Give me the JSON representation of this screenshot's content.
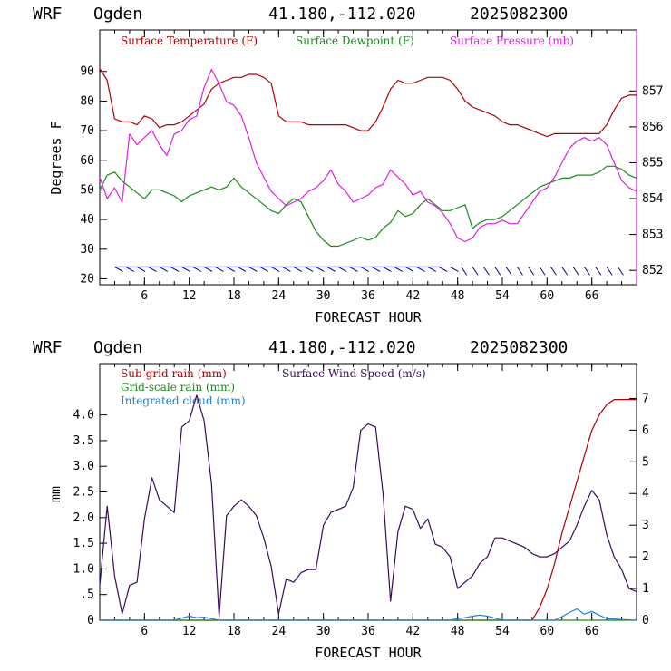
{
  "chart_data": [
    {
      "type": "line",
      "header": {
        "model": "WRF",
        "station": "Ogden",
        "coords": "41.180,-112.020",
        "date": "2025082300"
      },
      "xlabel": "FORECAST HOUR",
      "ylabel": "Degrees F",
      "xlim": [
        0,
        72
      ],
      "ylim": [
        18,
        104
      ],
      "y2lim": [
        851.6,
        858.7
      ],
      "xticks": [
        "6",
        "12",
        "18",
        "24",
        "30",
        "36",
        "42",
        "48",
        "54",
        "60",
        "66"
      ],
      "yticks": [
        "20",
        "30",
        "40",
        "50",
        "60",
        "70",
        "80",
        "90"
      ],
      "y2ticks": [
        "852",
        "853",
        "854",
        "855",
        "856",
        "857"
      ],
      "series": [
        {
          "name": "Surface Temperature (F)",
          "color": "#b00000",
          "axis": "left",
          "x": [
            0,
            1,
            2,
            3,
            4,
            5,
            6,
            7,
            8,
            9,
            10,
            11,
            12,
            13,
            14,
            15,
            16,
            17,
            18,
            19,
            20,
            21,
            22,
            23,
            24,
            25,
            26,
            27,
            28,
            29,
            30,
            31,
            32,
            33,
            34,
            35,
            36,
            37,
            38,
            39,
            40,
            41,
            42,
            43,
            44,
            45,
            46,
            47,
            48,
            49,
            50,
            51,
            52,
            53,
            54,
            55,
            56,
            57,
            58,
            59,
            60,
            61,
            62,
            63,
            64,
            65,
            66,
            67,
            68,
            69,
            70,
            71,
            72
          ],
          "y": [
            91,
            87,
            74,
            73,
            73,
            72,
            75,
            74,
            71,
            72,
            72,
            73,
            75,
            77,
            79,
            84,
            86,
            87,
            88,
            88,
            89,
            89,
            88,
            86,
            75,
            73,
            73,
            73,
            72,
            72,
            72,
            72,
            72,
            72,
            71,
            70,
            70,
            73,
            78,
            84,
            87,
            86,
            86,
            87,
            88,
            88,
            88,
            87,
            84,
            80,
            78,
            77,
            76,
            75,
            73,
            72,
            72,
            71,
            70,
            69,
            68,
            69,
            69,
            69,
            69,
            69,
            69,
            69,
            72,
            77,
            81,
            82,
            82
          ]
        },
        {
          "name": "Surface Dewpoint (F)",
          "color": "#1a8a1a",
          "axis": "left",
          "x": [
            0,
            1,
            2,
            3,
            4,
            5,
            6,
            7,
            8,
            9,
            10,
            11,
            12,
            13,
            14,
            15,
            16,
            17,
            18,
            19,
            20,
            21,
            22,
            23,
            24,
            25,
            26,
            27,
            28,
            29,
            30,
            31,
            32,
            33,
            34,
            35,
            36,
            37,
            38,
            39,
            40,
            41,
            42,
            43,
            44,
            45,
            46,
            47,
            48,
            49,
            50,
            51,
            52,
            53,
            54,
            55,
            56,
            57,
            58,
            59,
            60,
            61,
            62,
            63,
            64,
            65,
            66,
            67,
            68,
            69,
            70,
            71,
            72
          ],
          "y": [
            50,
            55,
            56,
            53,
            51,
            49,
            47,
            50,
            50,
            49,
            48,
            46,
            48,
            49,
            50,
            51,
            50,
            51,
            54,
            51,
            49,
            47,
            45,
            43,
            42,
            45,
            47,
            46,
            41,
            36,
            33,
            31,
            31,
            32,
            33,
            34,
            33,
            34,
            37,
            39,
            43,
            41,
            42,
            45,
            47,
            45,
            43,
            43,
            44,
            45,
            37,
            39,
            40,
            40,
            41,
            43,
            45,
            47,
            49,
            51,
            52,
            53,
            54,
            54,
            55,
            55,
            55,
            56,
            58,
            58,
            57,
            55,
            54
          ]
        },
        {
          "name": "Surface Pressure (mb)",
          "color": "#e020e0",
          "axis": "right",
          "x": [
            0,
            1,
            2,
            3,
            4,
            5,
            6,
            7,
            8,
            9,
            10,
            11,
            12,
            13,
            14,
            15,
            16,
            17,
            18,
            19,
            20,
            21,
            22,
            23,
            24,
            25,
            26,
            27,
            28,
            29,
            30,
            31,
            32,
            33,
            34,
            35,
            36,
            37,
            38,
            39,
            40,
            41,
            42,
            43,
            44,
            45,
            46,
            47,
            48,
            49,
            50,
            51,
            52,
            53,
            54,
            55,
            56,
            57,
            58,
            59,
            60,
            61,
            62,
            63,
            64,
            65,
            66,
            67,
            68,
            69,
            70,
            71,
            72
          ],
          "y": [
            854.6,
            854.0,
            854.3,
            853.9,
            855.8,
            855.5,
            855.7,
            855.9,
            855.5,
            855.2,
            855.8,
            855.9,
            856.2,
            856.3,
            857.1,
            857.6,
            857.2,
            856.7,
            856.6,
            856.3,
            855.7,
            855.0,
            854.6,
            854.2,
            854.0,
            853.8,
            853.9,
            854.0,
            854.2,
            854.3,
            854.5,
            854.8,
            854.4,
            854.2,
            853.9,
            854.0,
            854.1,
            854.3,
            854.4,
            854.8,
            854.6,
            854.4,
            854.1,
            854.2,
            853.9,
            853.8,
            853.6,
            853.3,
            852.9,
            852.8,
            852.9,
            853.2,
            853.3,
            853.3,
            853.4,
            853.3,
            853.3,
            853.6,
            853.9,
            854.2,
            854.3,
            854.6,
            855.0,
            855.4,
            855.6,
            855.7,
            855.6,
            855.7,
            855.5,
            855.0,
            854.5,
            854.3,
            854.2
          ]
        }
      ],
      "wind_barbs": {
        "color": "#000080",
        "y_level": 24,
        "x_start": 0,
        "x_end": 72
      }
    },
    {
      "type": "line",
      "header": {
        "model": "WRF",
        "station": "Ogden",
        "coords": "41.180,-112.020",
        "date": "2025082300"
      },
      "xlabel": "FORECAST HOUR",
      "ylabel": "mm",
      "xlim": [
        0,
        72
      ],
      "ylim": [
        0,
        5.0
      ],
      "y2lim": [
        0,
        8.1
      ],
      "xticks": [
        "6",
        "12",
        "18",
        "24",
        "30",
        "36",
        "42",
        "48",
        "54",
        "60",
        "66"
      ],
      "yticks": [
        "0",
        ".5",
        "1.0",
        "1.5",
        "2.0",
        "2.5",
        "3.0",
        "3.5",
        "4.0"
      ],
      "y2ticks": [
        "0",
        "1",
        "2",
        "3",
        "4",
        "5",
        "6",
        "7"
      ],
      "series": [
        {
          "name": "Sub-grid rain (mm)",
          "color": "#b00000",
          "axis": "left",
          "x": [
            0,
            58,
            59,
            60,
            61,
            62,
            63,
            64,
            65,
            66,
            67,
            68,
            69,
            70,
            71,
            72
          ],
          "y": [
            0,
            0,
            0.25,
            0.6,
            1.1,
            1.7,
            2.2,
            2.7,
            3.2,
            3.7,
            4.0,
            4.2,
            4.3,
            4.3,
            4.3,
            4.3
          ]
        },
        {
          "name": "Grid-scale rain (mm)",
          "color": "#1a8a1a",
          "axis": "left",
          "x": [
            0,
            72
          ],
          "y": [
            0,
            0
          ]
        },
        {
          "name": "Integrated cloud (mm)",
          "color": "#1e7fd0",
          "axis": "left",
          "x": [
            0,
            10,
            11,
            12,
            13,
            14,
            15,
            16,
            47,
            48,
            49,
            50,
            51,
            52,
            53,
            54,
            61,
            62,
            63,
            64,
            65,
            66,
            67,
            68,
            72
          ],
          "y": [
            0,
            0,
            0.04,
            0.08,
            0.05,
            0.06,
            0.03,
            0,
            0,
            0.03,
            0.05,
            0.08,
            0.1,
            0.08,
            0.04,
            0,
            0,
            0.07,
            0.15,
            0.22,
            0.12,
            0.17,
            0.1,
            0.03,
            0
          ]
        },
        {
          "name": "Surface Wind Speed (m/s)",
          "color": "#3a0a5a",
          "axis": "right",
          "x": [
            0,
            1,
            2,
            3,
            4,
            5,
            6,
            7,
            8,
            9,
            10,
            11,
            12,
            13,
            14,
            15,
            16,
            17,
            18,
            19,
            20,
            21,
            22,
            23,
            24,
            25,
            26,
            27,
            28,
            29,
            30,
            31,
            32,
            33,
            34,
            35,
            36,
            37,
            38,
            39,
            40,
            41,
            42,
            43,
            44,
            45,
            46,
            47,
            48,
            49,
            50,
            51,
            52,
            53,
            54,
            55,
            56,
            57,
            58,
            59,
            60,
            61,
            62,
            63,
            64,
            65,
            66,
            67,
            68,
            69,
            70,
            71,
            72
          ],
          "y": [
            1.1,
            3.6,
            1.4,
            0.2,
            1.1,
            1.2,
            3.2,
            4.5,
            3.8,
            3.6,
            3.4,
            6.1,
            6.3,
            7.1,
            6.3,
            4.3,
            0.1,
            3.3,
            3.6,
            3.8,
            3.6,
            3.3,
            2.6,
            1.7,
            0.2,
            1.3,
            1.2,
            1.5,
            1.6,
            1.6,
            3.0,
            3.4,
            3.5,
            3.6,
            4.2,
            6.0,
            6.2,
            6.1,
            4.0,
            0.6,
            2.8,
            3.6,
            3.5,
            2.9,
            3.2,
            2.4,
            2.3,
            2.0,
            1.0,
            1.2,
            1.4,
            1.8,
            2.0,
            2.6,
            2.6,
            2.5,
            2.4,
            2.3,
            2.1,
            2.0,
            2.0,
            2.1,
            2.3,
            2.5,
            3.0,
            3.6,
            4.1,
            3.8,
            2.7,
            2.0,
            1.6,
            1.0,
            0.9
          ]
        }
      ]
    }
  ]
}
